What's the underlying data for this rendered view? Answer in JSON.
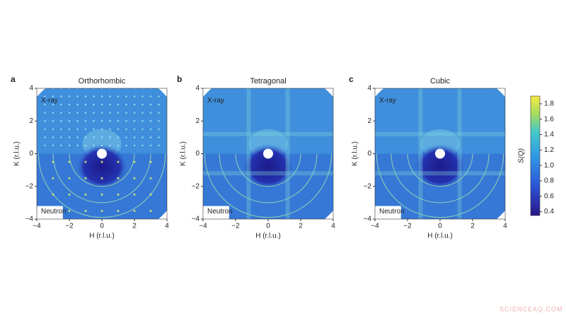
{
  "chart_data": [
    {
      "type": "heatmap",
      "panel": "a",
      "title": "Orthorhombic",
      "x_label": "H (r.l.u.)",
      "y_label": "K (r.l.u.)",
      "xlim": [
        -4,
        4
      ],
      "ylim": [
        -4,
        4
      ],
      "xticks": [
        {
          "value": -4,
          "label": "−4"
        },
        {
          "value": -2,
          "label": "−2"
        },
        0,
        2,
        4
      ],
      "yticks": [
        {
          "value": -4,
          "label": "−4"
        },
        {
          "value": -2,
          "label": "−2"
        },
        0,
        2,
        4
      ],
      "annotations": [
        "X-ray",
        "Neutron"
      ]
    },
    {
      "type": "heatmap",
      "panel": "b",
      "title": "Tetragonal",
      "x_label": "H (r.l.u.)",
      "y_label": "K (r.l.u.)",
      "xlim": [
        -4,
        4
      ],
      "ylim": [
        -4,
        4
      ],
      "xticks": [
        {
          "value": -4,
          "label": "−4"
        },
        {
          "value": -2,
          "label": "−2"
        },
        0,
        2,
        4
      ],
      "yticks": [
        {
          "value": -4,
          "label": "−4"
        },
        {
          "value": -2,
          "label": "−2"
        },
        0,
        2,
        4
      ],
      "annotations": [
        "X-ray",
        "Neutron"
      ]
    },
    {
      "type": "heatmap",
      "panel": "c",
      "title": "Cubic",
      "x_label": "H (r.l.u.)",
      "y_label": "K (r.l.u.)",
      "xlim": [
        -4,
        4
      ],
      "ylim": [
        -4,
        4
      ],
      "xticks": [
        {
          "value": -4,
          "label": "−4"
        },
        {
          "value": -2,
          "label": "−2"
        },
        0,
        2,
        4
      ],
      "yticks": [
        {
          "value": -4,
          "label": "−4"
        },
        {
          "value": -2,
          "label": "−2"
        },
        0,
        2,
        4
      ],
      "annotations": [
        "X-ray",
        "Neutron"
      ]
    }
  ],
  "colorbar": {
    "label": "S(Q)",
    "lim": [
      0.35,
      1.9
    ],
    "ticks": [
      0.4,
      0.6,
      0.8,
      {
        "value": 1,
        "label": "1.0"
      },
      1.2,
      1.4,
      1.6,
      1.8
    ]
  },
  "watermark": "SCIENCEAQ.COM"
}
